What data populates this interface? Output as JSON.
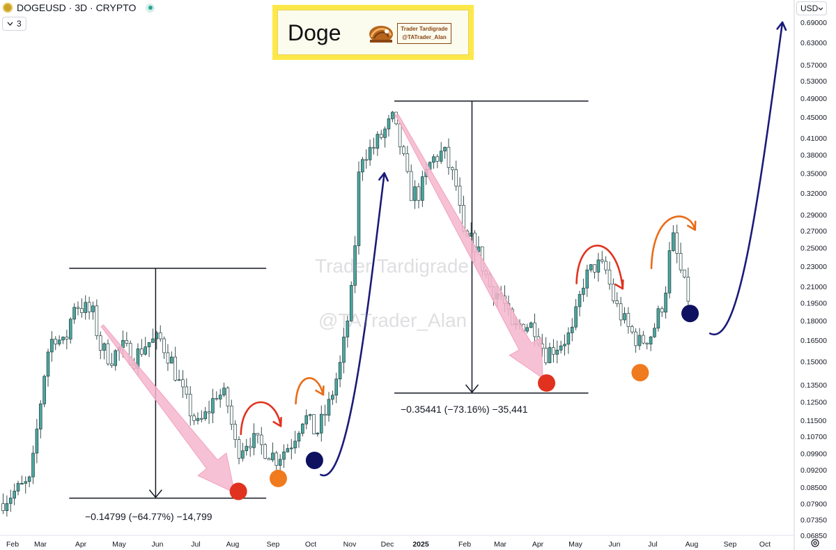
{
  "header": {
    "symbol": "DOGEUSD · 3D · CRYPTO",
    "indicator_count": "3",
    "currency": "USD"
  },
  "brand": {
    "title": "Doge",
    "line1": "Trader Tardigrade",
    "line2": "@TATrader_Alan"
  },
  "watermark": {
    "line1": "Trader Tardigrade",
    "line2": "@TATrader_Alan"
  },
  "measures": [
    {
      "label": "−0.14799 (−64.77%) −14,799"
    },
    {
      "label": "−0.35441 (−73.16%) −35,441"
    }
  ],
  "colors": {
    "candle_up": "#4aa8a0",
    "candle_down": "#ffffff",
    "candle_outline": "#1f3a3a",
    "down_arrow_fill": "#f5b6cc",
    "red_dot": "#e0321f",
    "orange_dot": "#f07a1e",
    "navy_dot": "#0d1160",
    "curve_red": "#e0321f",
    "curve_orange": "#e96b16",
    "curve_navy": "#1a1a7a"
  },
  "icons": {
    "coin": "doge-coin-icon",
    "status": "market-status-icon",
    "toggle": "chevron-down-icon",
    "settings": "gear-icon"
  },
  "chart_data": {
    "type": "candlestick",
    "symbol": "DOGEUSD",
    "timeframe": "3D",
    "scale": "log",
    "y_ticks": [
      "0.69000",
      "0.63000",
      "0.57000",
      "0.53000",
      "0.49000",
      "0.45000",
      "0.41000",
      "0.38000",
      "0.35000",
      "0.32000",
      "0.29000",
      "0.27000",
      "0.25000",
      "0.23000",
      "0.21000",
      "0.19500",
      "0.18000",
      "0.16500",
      "0.15000",
      "0.13500",
      "0.12500",
      "0.11500",
      "0.10700",
      "0.09900",
      "0.09200",
      "0.08500",
      "0.07900",
      "0.07350",
      "0.06850"
    ],
    "x_ticks": [
      "Feb",
      "Mar",
      "Apr",
      "May",
      "Jun",
      "Jul",
      "Aug",
      "Sep",
      "Oct",
      "Nov",
      "Dec",
      "2025",
      "Feb",
      "Mar",
      "Apr",
      "May",
      "Jun",
      "Jul",
      "Aug",
      "Sep",
      "Oct"
    ],
    "ylim": [
      0.0685,
      0.72
    ],
    "path_points": [
      [
        "2024-01-28",
        0.079
      ],
      [
        "2024-02-08",
        0.083
      ],
      [
        "2024-02-22",
        0.087
      ],
      [
        "2024-02-28",
        0.115
      ],
      [
        "2024-03-06",
        0.155
      ],
      [
        "2024-03-12",
        0.17
      ],
      [
        "2024-03-20",
        0.16
      ],
      [
        "2024-03-28",
        0.195
      ],
      [
        "2024-04-05",
        0.19
      ],
      [
        "2024-04-12",
        0.185
      ],
      [
        "2024-04-18",
        0.16
      ],
      [
        "2024-04-26",
        0.152
      ],
      [
        "2024-05-05",
        0.16
      ],
      [
        "2024-05-15",
        0.152
      ],
      [
        "2024-05-25",
        0.163
      ],
      [
        "2024-06-05",
        0.165
      ],
      [
        "2024-06-14",
        0.15
      ],
      [
        "2024-06-24",
        0.127
      ],
      [
        "2024-07-05",
        0.112
      ],
      [
        "2024-07-12",
        0.118
      ],
      [
        "2024-07-20",
        0.13
      ],
      [
        "2024-07-28",
        0.127
      ],
      [
        "2024-08-05",
        0.1
      ],
      [
        "2024-08-15",
        0.106
      ],
      [
        "2024-08-28",
        0.101
      ],
      [
        "2024-09-06",
        0.097
      ],
      [
        "2024-09-18",
        0.104
      ],
      [
        "2024-09-28",
        0.118
      ],
      [
        "2024-10-08",
        0.108
      ],
      [
        "2024-10-18",
        0.123
      ],
      [
        "2024-10-28",
        0.15
      ],
      [
        "2024-11-06",
        0.21
      ],
      [
        "2024-11-12",
        0.38
      ],
      [
        "2024-11-22",
        0.39
      ],
      [
        "2024-12-01",
        0.42
      ],
      [
        "2024-12-08",
        0.445
      ],
      [
        "2024-12-15",
        0.39
      ],
      [
        "2024-12-22",
        0.32
      ],
      [
        "2024-12-30",
        0.32
      ],
      [
        "2025-01-08",
        0.37
      ],
      [
        "2025-01-18",
        0.385
      ],
      [
        "2025-01-28",
        0.33
      ],
      [
        "2025-02-03",
        0.26
      ],
      [
        "2025-02-12",
        0.255
      ],
      [
        "2025-02-24",
        0.21
      ],
      [
        "2025-03-06",
        0.2
      ],
      [
        "2025-03-14",
        0.172
      ],
      [
        "2025-03-22",
        0.178
      ],
      [
        "2025-04-02",
        0.175
      ],
      [
        "2025-04-09",
        0.155
      ],
      [
        "2025-04-20",
        0.162
      ],
      [
        "2025-05-01",
        0.17
      ],
      [
        "2025-05-10",
        0.215
      ],
      [
        "2025-05-20",
        0.232
      ],
      [
        "2025-05-28",
        0.225
      ],
      [
        "2025-06-04",
        0.195
      ],
      [
        "2025-06-14",
        0.175
      ],
      [
        "2025-06-24",
        0.163
      ],
      [
        "2025-07-04",
        0.17
      ],
      [
        "2025-07-14",
        0.2
      ],
      [
        "2025-07-20",
        0.265
      ],
      [
        "2025-07-26",
        0.23
      ],
      [
        "2025-08-01",
        0.2
      ]
    ],
    "annotations": {
      "measures": [
        {
          "start": "2024-03-28",
          "end": "2024-08-05",
          "high": 0.228,
          "low": 0.081,
          "change": "−0.14799 (−64.77%) −14,799"
        },
        {
          "start": "2024-12-08",
          "end": "2025-04-09",
          "high": 0.484,
          "low": 0.13,
          "change": "−0.35441 (−73.16%) −35,441"
        }
      ],
      "pink_arrows": [
        {
          "from": [
            "2024-04-18",
            0.176
          ],
          "to": [
            "2024-08-02",
            0.083
          ]
        },
        {
          "from": [
            "2024-12-10",
            0.455
          ],
          "to": [
            "2025-04-06",
            0.139
          ]
        }
      ],
      "dots": [
        {
          "date": "2024-08-05",
          "value": 0.0835,
          "color": "red"
        },
        {
          "date": "2024-09-06",
          "value": 0.0885,
          "color": "orange"
        },
        {
          "date": "2024-10-05",
          "value": 0.096,
          "color": "navy"
        },
        {
          "date": "2025-04-09",
          "value": 0.136,
          "color": "red"
        },
        {
          "date": "2025-06-23",
          "value": 0.1425,
          "color": "orange"
        },
        {
          "date": "2025-08-02",
          "value": 0.186,
          "color": "navy"
        }
      ],
      "curved_arrows": [
        {
          "color": "red",
          "from": [
            "2024-08-07",
            0.108
          ],
          "peak": [
            "2024-08-22",
            0.126
          ],
          "to": [
            "2024-09-08",
            0.112
          ]
        },
        {
          "color": "orange",
          "from": [
            "2024-09-20",
            0.124
          ],
          "peak": [
            "2024-10-01",
            0.139
          ],
          "to": [
            "2024-10-12",
            0.129
          ]
        },
        {
          "color": "navy",
          "from": [
            "2024-10-10",
            0.09
          ],
          "peak": [
            "2024-11-28",
            0.336
          ],
          "to": [
            "2024-11-30",
            0.35
          ]
        },
        {
          "color": "red",
          "from": [
            "2025-05-03",
            0.213
          ],
          "peak": [
            "2025-05-22",
            0.26
          ],
          "to": [
            "2025-06-09",
            0.208
          ]
        },
        {
          "color": "orange",
          "from": [
            "2025-07-02",
            0.228
          ],
          "peak": [
            "2025-07-19",
            0.29
          ],
          "to": [
            "2025-08-06",
            0.271
          ]
        },
        {
          "color": "navy",
          "from": [
            "2025-08-18",
            0.17
          ],
          "peak": [
            "2025-10-05",
            0.5
          ],
          "to": [
            "2025-10-15",
            0.69
          ]
        }
      ]
    }
  }
}
